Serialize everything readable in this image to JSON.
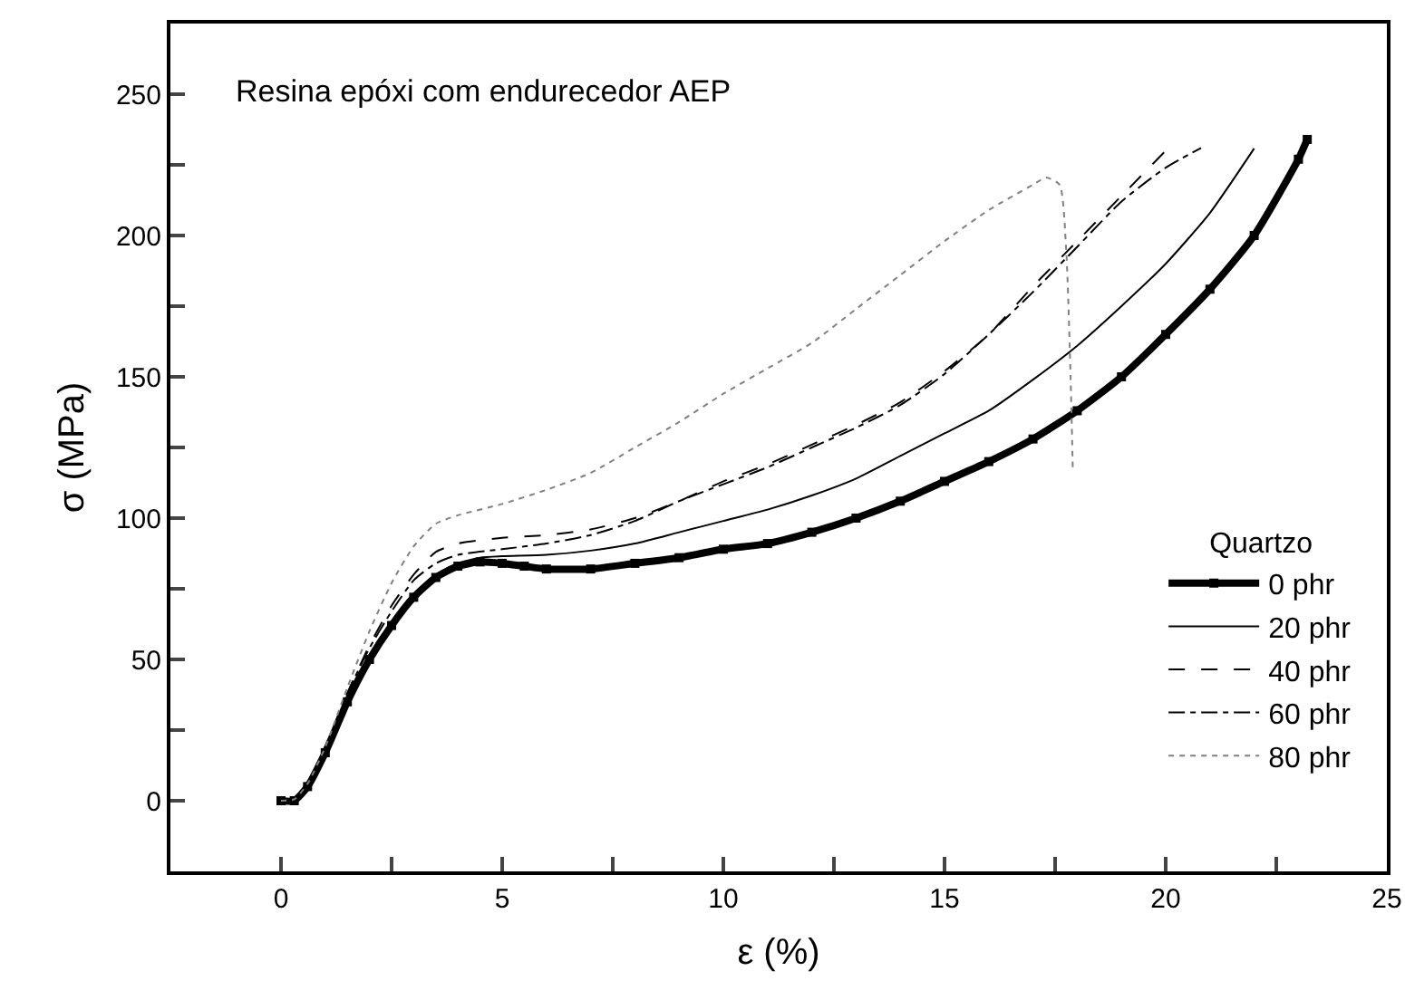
{
  "chart_data": {
    "type": "line",
    "xlabel": "ε (%)",
    "ylabel": "σ (MPa)",
    "annotations": [
      "Resina epóxi com endurecedor AEP"
    ],
    "legend_title": "Quartzo",
    "legend": "bottom right",
    "grid": false,
    "xlim": [
      -2.5,
      25
    ],
    "ylim": [
      -25,
      275
    ],
    "xticks": [
      0,
      {
        "value": 2.5,
        "label": null
      },
      5,
      {
        "value": 7.5,
        "label": null
      },
      10,
      {
        "value": 12.5,
        "label": null
      },
      15,
      {
        "value": 17.5,
        "label": null
      },
      20,
      {
        "value": 22.5,
        "label": null
      },
      25
    ],
    "yticks": [
      0,
      {
        "value": 25,
        "label": null
      },
      50,
      {
        "value": 75,
        "label": null
      },
      100,
      {
        "value": 125,
        "label": null
      },
      150,
      {
        "value": 175,
        "label": null
      },
      200,
      {
        "value": 225,
        "label": null
      },
      250
    ],
    "series": [
      {
        "name": "0 phr",
        "color": "#000000",
        "marker": "square",
        "line_style": "solid",
        "x": [
          0,
          0.3,
          0.6,
          1,
          1.5,
          2,
          2.5,
          3,
          3.5,
          4,
          4.5,
          5,
          5.5,
          6,
          7,
          8,
          9,
          10,
          11,
          12,
          13,
          14,
          15,
          16,
          17,
          18,
          19,
          20,
          21,
          22,
          23,
          23.2
        ],
        "values": [
          0,
          0,
          5,
          17,
          35,
          50,
          62,
          72,
          79,
          83,
          84.5,
          84,
          83,
          82,
          82,
          84,
          86,
          89,
          91,
          95,
          100,
          106,
          113,
          120,
          128,
          138,
          150,
          165,
          181,
          200,
          227,
          234
        ]
      },
      {
        "name": "20 phr",
        "color": "#000000",
        "marker": "none",
        "line_style": "solid",
        "x": [
          0,
          0.3,
          0.6,
          1,
          1.5,
          2,
          2.5,
          3,
          3.5,
          4,
          4.5,
          5,
          6,
          7,
          8,
          9,
          10,
          11,
          12,
          13,
          14,
          15,
          16,
          17,
          18,
          19,
          20,
          21,
          22
        ],
        "values": [
          0,
          0.5,
          6,
          18,
          36,
          51,
          63,
          73,
          80,
          84,
          86,
          86.5,
          87,
          88.5,
          91,
          95,
          99,
          103,
          108,
          114,
          122,
          130,
          138,
          149,
          161,
          175,
          190,
          208,
          230.8
        ]
      },
      {
        "name": "40 phr",
        "color": "#000000",
        "marker": "none",
        "line_style": "dashed",
        "x": [
          0,
          0.3,
          0.6,
          1,
          1.5,
          2,
          2.5,
          3,
          3.5,
          4,
          5,
          6,
          7,
          8,
          9,
          10,
          11,
          12,
          13,
          14,
          15,
          16,
          17,
          18,
          19,
          20
        ],
        "values": [
          0,
          0.5,
          6,
          19,
          38,
          55,
          69,
          80,
          88,
          91,
          93,
          94,
          96,
          100,
          106,
          113,
          119,
          126,
          133,
          141,
          152,
          165,
          182,
          198,
          214,
          230
        ]
      },
      {
        "name": "60 phr",
        "color": "#000000",
        "marker": "none",
        "line_style": "dashdot",
        "x": [
          0,
          0.3,
          0.6,
          1,
          1.5,
          2,
          2.5,
          3,
          3.5,
          4,
          5,
          6,
          7,
          8,
          9,
          10,
          11,
          12,
          13,
          14,
          15,
          16,
          17,
          18,
          19,
          20,
          20.8
        ],
        "values": [
          0,
          0.5,
          6,
          19,
          38,
          54,
          67,
          78,
          84,
          87,
          89,
          91,
          94,
          99,
          106,
          112,
          118,
          125,
          132,
          140,
          151,
          165,
          180,
          196,
          212,
          224,
          231
        ]
      },
      {
        "name": "80 phr",
        "color": "#808080",
        "marker": "none",
        "line_style": "dotted",
        "x": [
          0,
          0.3,
          0.6,
          1,
          1.5,
          2,
          2.5,
          3,
          3.5,
          4,
          5,
          6,
          7,
          8,
          9,
          10,
          11,
          12,
          13,
          14,
          15,
          16,
          17,
          17.3,
          17.6,
          17.75,
          17.85,
          17.9
        ],
        "values": [
          0,
          0.5,
          6,
          19,
          40,
          60,
          77,
          90,
          98,
          101,
          105,
          110,
          116,
          125,
          134,
          144,
          153,
          162,
          174,
          186,
          198,
          209,
          218,
          220.5,
          218,
          195,
          150,
          117
        ]
      }
    ]
  }
}
